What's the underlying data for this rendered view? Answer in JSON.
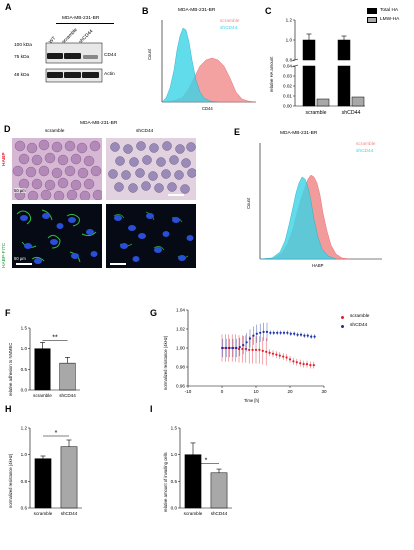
{
  "panels": {
    "A": {
      "letter": "A",
      "cell_line": "MDA-MB-231-BR",
      "lanes": [
        "WT",
        "scramble",
        "shCD44"
      ],
      "markers": [
        "100 kDa",
        "75 kDa",
        "48 kDa"
      ],
      "bands": [
        "CD44",
        "Actin"
      ]
    },
    "B": {
      "letter": "B",
      "title": "MDA-MB-231-BR",
      "xlabel": "CD44",
      "ylabel": "Count",
      "legend": [
        "scramble",
        "shCD44"
      ]
    },
    "C": {
      "letter": "C",
      "legend": [
        "Total HA",
        "LMW-HA"
      ],
      "ylabel": "relative HA amount"
    },
    "D": {
      "letter": "D",
      "cell_line": "MDA-MB-231-BR",
      "cols": [
        "scramble",
        "shCD44"
      ],
      "rows": [
        "HABP",
        "HABP-FITC"
      ],
      "scalebar_top": "50 µm",
      "scalebar_bottom": "50 µm"
    },
    "E": {
      "letter": "E",
      "title": "MDA-MB-231-BR",
      "xlabel": "HABP",
      "ylabel": "Count",
      "legend": [
        "scramble",
        "shCD44"
      ]
    },
    "F": {
      "letter": "F",
      "ylabel": "relative adhesion to NMMEC",
      "sig": "**"
    },
    "G": {
      "letter": "G",
      "ylabel": "normalized resistance (4kHz)",
      "xlabel": "Time [h]",
      "legend": [
        "scramble",
        "shCD44"
      ]
    },
    "H": {
      "letter": "H",
      "ylabel": "normalized resistance (4kHz)",
      "sig": "*"
    },
    "I": {
      "letter": "I",
      "ylabel": "relative amount of invading cells",
      "sig": "*"
    }
  },
  "colors": {
    "scramble": "#f08a8a",
    "shCD44": "#3ad3e6",
    "total_ha": "#000000",
    "lmw_ha": "#a8a8a8",
    "g_scramble": "#e0202a",
    "g_shcd44": "#1a2fa8",
    "habp_bg": "#d9c2d6",
    "fitc_bg": "#050a14"
  },
  "chart_data": [
    {
      "id": "C",
      "type": "bar",
      "categories": [
        "scramble",
        "shCD44"
      ],
      "series": [
        {
          "name": "Total HA",
          "values": [
            1.0,
            1.0
          ],
          "err": [
            0.06,
            0.04
          ]
        },
        {
          "name": "LMW-HA",
          "values": [
            0.007,
            0.009
          ],
          "err": [
            0.001,
            0.001
          ]
        }
      ],
      "ylabel": "relative HA amount",
      "yticks_top": [
        "0.8",
        "1.0",
        "1.2"
      ],
      "yticks_bottom": [
        "0.00",
        "0.01",
        "0.02",
        "0.03",
        "0.04"
      ]
    },
    {
      "id": "F",
      "type": "bar",
      "categories": [
        "scramble",
        "shCD44"
      ],
      "values": [
        1.0,
        0.65
      ],
      "err": [
        0.15,
        0.14
      ],
      "ylim": [
        0,
        1.5
      ],
      "yticks": [
        "0.0",
        "0.5",
        "1.0",
        "1.5"
      ]
    },
    {
      "id": "G",
      "type": "scatter",
      "xlabel": "Time [h]",
      "ylim": [
        0.96,
        1.04
      ],
      "xlim": [
        -10,
        30
      ],
      "yticks": [
        "0.96",
        "0.98",
        "1.00",
        "1.02",
        "1.04"
      ],
      "xticks": [
        "-10",
        "0",
        "10",
        "20",
        "30"
      ],
      "series": [
        {
          "name": "scramble",
          "x": [
            0,
            1,
            2,
            3,
            4,
            5,
            6,
            7,
            8,
            9,
            10,
            11,
            12,
            13,
            14,
            15,
            16,
            17,
            18,
            19,
            20,
            21,
            22,
            23,
            24,
            25,
            26,
            27
          ],
          "y": [
            1.0,
            1.0,
            1.0,
            1.0,
            1.0,
            0.999,
            0.999,
            0.999,
            0.998,
            0.998,
            0.998,
            0.998,
            0.997,
            0.996,
            0.995,
            0.994,
            0.993,
            0.992,
            0.991,
            0.99,
            0.988,
            0.986,
            0.985,
            0.984,
            0.983,
            0.983,
            0.982,
            0.982
          ]
        },
        {
          "name": "shCD44",
          "x": [
            0,
            1,
            2,
            3,
            4,
            5,
            6,
            7,
            8,
            9,
            10,
            11,
            12,
            13,
            14,
            15,
            16,
            17,
            18,
            19,
            20,
            21,
            22,
            23,
            24,
            25,
            26,
            27
          ],
          "y": [
            1.0,
            1.0,
            1.0,
            1.0,
            1.0,
            1.001,
            1.003,
            1.006,
            1.01,
            1.013,
            1.015,
            1.016,
            1.017,
            1.017,
            1.016,
            1.016,
            1.016,
            1.016,
            1.016,
            1.016,
            1.015,
            1.015,
            1.014,
            1.014,
            1.013,
            1.013,
            1.012,
            1.012
          ]
        }
      ]
    },
    {
      "id": "H",
      "type": "bar",
      "categories": [
        "scramble",
        "shCD44"
      ],
      "values": [
        0.97,
        1.06
      ],
      "err": [
        0.02,
        0.05
      ],
      "ylim": [
        0.6,
        1.2
      ],
      "yticks": [
        "0.6",
        "0.8",
        "1.0",
        "1.2"
      ]
    },
    {
      "id": "I",
      "type": "bar",
      "categories": [
        "scramble",
        "shCD44"
      ],
      "values": [
        1.0,
        0.66
      ],
      "err": [
        0.22,
        0.07
      ],
      "ylim": [
        0,
        1.5
      ],
      "yticks": [
        "0.0",
        "0.5",
        "1.0",
        "1.5"
      ]
    }
  ]
}
